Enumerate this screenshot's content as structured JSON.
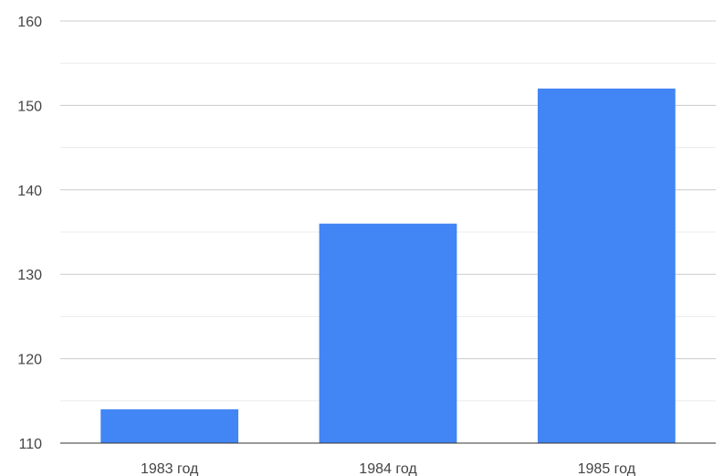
{
  "chart_data": {
    "type": "bar",
    "categories": [
      "1983 год",
      "1984 год",
      "1985 год"
    ],
    "values": [
      114,
      136,
      152
    ],
    "title": "",
    "xlabel": "",
    "ylabel": "",
    "ylim": [
      110,
      160
    ],
    "y_ticks": [
      "110",
      "120",
      "130",
      "140",
      "150",
      "160"
    ],
    "y_minor_step": 5,
    "grid": true,
    "legend": "none",
    "colors": {
      "bar": "#4285f4",
      "major_grid": "#cccccc",
      "minor_grid": "#ebebeb",
      "baseline": "#333333",
      "text": "#444444"
    }
  }
}
